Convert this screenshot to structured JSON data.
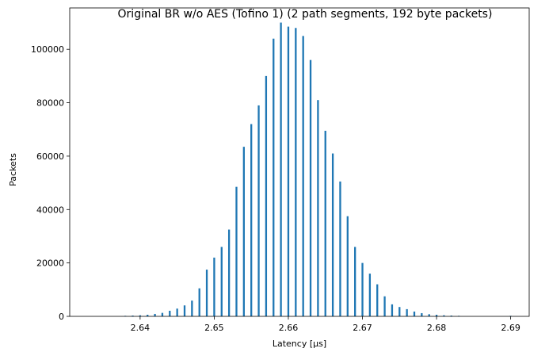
{
  "chart_data": {
    "type": "bar",
    "title": "Original BR w/o AES (Tofino 1) (2 path segments, 192 byte packets)",
    "xlabel": "Latency [µs]",
    "ylabel": "Packets",
    "xlim": [
      2.6305,
      2.6925
    ],
    "ylim": [
      0,
      115500
    ],
    "grid": false,
    "color": "#1f77b4",
    "x_ticks": [
      {
        "value": 2.64,
        "label": "2.64"
      },
      {
        "value": 2.65,
        "label": "2.65"
      },
      {
        "value": 2.66,
        "label": "2.66"
      },
      {
        "value": 2.67,
        "label": "2.67"
      },
      {
        "value": 2.68,
        "label": "2.68"
      },
      {
        "value": 2.69,
        "label": "2.69"
      }
    ],
    "y_ticks": [
      {
        "value": 0,
        "label": "0"
      },
      {
        "value": 20000,
        "label": "20000"
      },
      {
        "value": 40000,
        "label": "40000"
      },
      {
        "value": 60000,
        "label": "60000"
      },
      {
        "value": 80000,
        "label": "80000"
      },
      {
        "value": 100000,
        "label": "100000"
      }
    ],
    "x": [
      2.638,
      2.639,
      2.64,
      2.641,
      2.642,
      2.643,
      2.644,
      2.645,
      2.646,
      2.647,
      2.648,
      2.649,
      2.65,
      2.651,
      2.652,
      2.653,
      2.654,
      2.655,
      2.656,
      2.657,
      2.658,
      2.659,
      2.66,
      2.661,
      2.662,
      2.663,
      2.664,
      2.665,
      2.666,
      2.667,
      2.668,
      2.669,
      2.67,
      2.671,
      2.672,
      2.673,
      2.674,
      2.675,
      2.676,
      2.677,
      2.678,
      2.679,
      2.68,
      2.681,
      2.682,
      2.683,
      2.69
    ],
    "values": [
      200,
      300,
      400,
      600,
      900,
      1300,
      2100,
      2900,
      4100,
      5900,
      10500,
      17500,
      22000,
      26000,
      32500,
      48500,
      63500,
      72000,
      79000,
      90000,
      104000,
      110000,
      108500,
      108000,
      105000,
      96000,
      81000,
      69500,
      61000,
      50500,
      37500,
      26000,
      20000,
      16000,
      12000,
      7500,
      4500,
      3500,
      2700,
      1800,
      1200,
      800,
      600,
      400,
      300,
      200,
      200
    ]
  }
}
